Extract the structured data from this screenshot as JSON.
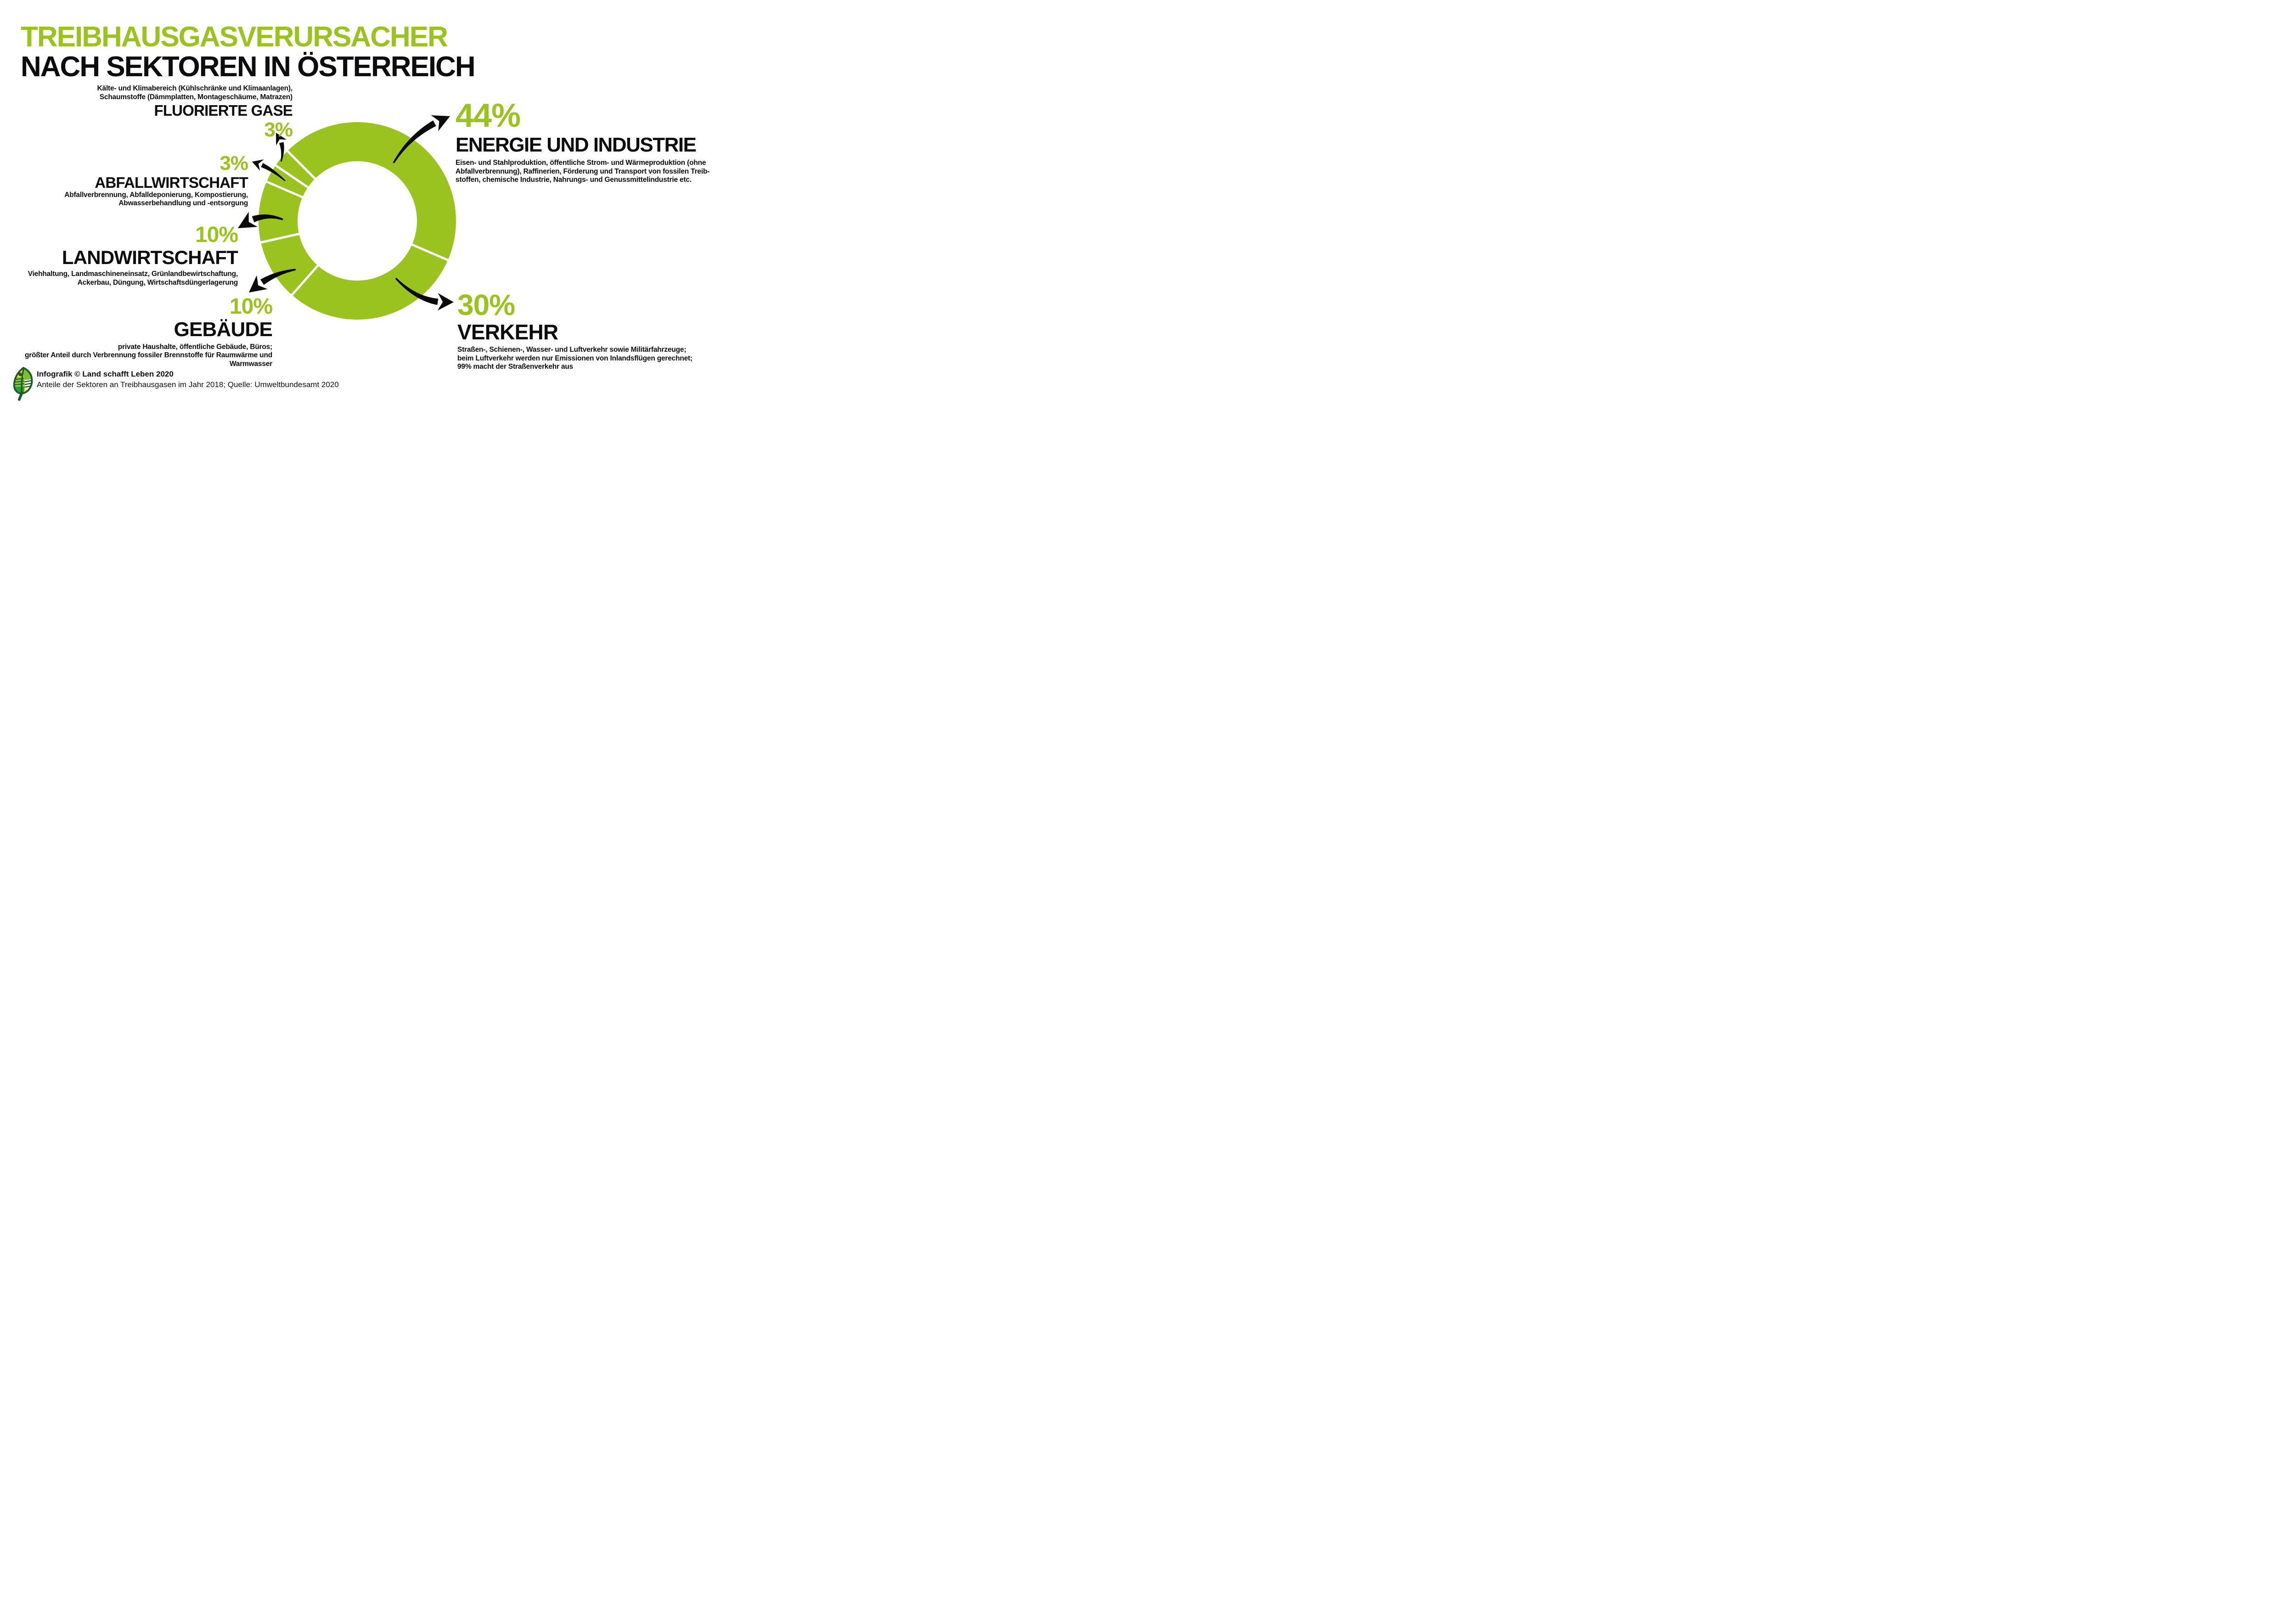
{
  "meta": {
    "background": "#ffffff",
    "accent_green": "#9bc31f",
    "text_black": "#0d0d0d",
    "arrow_black": "#0b0b0b"
  },
  "title": {
    "line1": "TREIBHAUSGASVERURSACHER",
    "line2": "NACH SEKTOREN IN ÖSTERREICH"
  },
  "chart_data": {
    "type": "pie",
    "subtype": "donut",
    "title": "Treibhausgasverursacher nach Sektoren in Österreich",
    "unit": "%",
    "start_angle_deg_from_top": 315,
    "direction": "clockwise",
    "ring_color": "#9bc31f",
    "separator_color": "#ffffff",
    "legend_position": "around",
    "series": [
      {
        "label": "Energie und Industrie",
        "value": 44
      },
      {
        "label": "Verkehr",
        "value": 30
      },
      {
        "label": "Gebäude",
        "value": 10
      },
      {
        "label": "Landwirtschaft",
        "value": 10
      },
      {
        "label": "Abfallwirtschaft",
        "value": 3
      },
      {
        "label": "Fluorierte Gase",
        "value": 3
      }
    ]
  },
  "sectors": {
    "fluorierte_gase": {
      "desc": [
        "Kälte- und Klimabereich (Kühlschränke und Klimaanlagen),",
        "Schaumstoffe (Dämmplatten, Montageschäume, Matrazen)"
      ],
      "name": "FLUORIERTE GASE",
      "percent": "3%"
    },
    "abfallwirtschaft": {
      "percent": "3%",
      "name": "ABFALLWIRTSCHAFT",
      "desc": [
        "Abfallverbrennung, Abfalldeponierung, Kompostierung,",
        "Abwasserbehandlung und -entsorgung"
      ]
    },
    "landwirtschaft": {
      "percent": "10%",
      "name": "LANDWIRTSCHAFT",
      "desc": [
        "Viehhaltung, Landmaschineneinsatz, Grünlandbewirtschaftung,",
        "Ackerbau, Düngung, Wirtschaftsdüngerlagerung"
      ]
    },
    "gebaeude": {
      "percent": "10%",
      "name": "GEBÄUDE",
      "desc": [
        "private Haushalte, öffentliche Gebäude, Büros;",
        "größter Anteil durch Verbrennung fossiler Brennstoffe für Raumwärme und",
        "Warmwasser"
      ]
    },
    "energie_und_industrie": {
      "percent": "44%",
      "name": "ENERGIE UND INDUSTRIE",
      "desc": [
        "Eisen- und Stahlproduktion, öffentliche Strom- und Wärmeproduktion (ohne",
        "Abfallverbrennung), Raffinerien, Förderung und Transport von fossilen Treib-",
        "stoffen, chemische Industrie, Nahrungs- und Genussmittelindustrie etc."
      ]
    },
    "verkehr": {
      "percent": "30%",
      "name": "VERKEHR",
      "desc": [
        "Straßen-, Schienen-, Wasser- und Luftverkehr sowie Militärfahrzeuge;",
        "beim Luftverkehr werden nur Emissionen von Inlandsflügen gerechnet;",
        "99% macht der Straßenverkehr aus"
      ]
    }
  },
  "footer": {
    "credit": "Infografik © Land schafft Leben 2020",
    "source": "Anteile der Sektoren an Treibhausgasen im Jahr 2018; Quelle: Umweltbundesamt 2020",
    "logo": "land-schafft-leben-leaf-logo"
  }
}
